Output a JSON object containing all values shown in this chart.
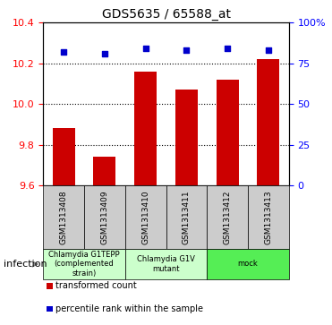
{
  "title": "GDS5635 / 65588_at",
  "samples": [
    "GSM1313408",
    "GSM1313409",
    "GSM1313410",
    "GSM1313411",
    "GSM1313412",
    "GSM1313413"
  ],
  "bar_values": [
    9.88,
    9.74,
    10.16,
    10.07,
    10.12,
    10.22
  ],
  "percentile_values": [
    82,
    81,
    84,
    83,
    84,
    83
  ],
  "ylim_left": [
    9.6,
    10.4
  ],
  "ylim_right": [
    0,
    100
  ],
  "yticks_left": [
    9.6,
    9.8,
    10.0,
    10.2,
    10.4
  ],
  "yticks_right": [
    0,
    25,
    50,
    75,
    100
  ],
  "ytick_labels_right": [
    "0",
    "25",
    "50",
    "75",
    "100%"
  ],
  "bar_color": "#cc0000",
  "dot_color": "#0000cc",
  "group_configs": [
    {
      "indices": [
        0,
        1
      ],
      "label": "Chlamydia G1TEPP\n(complemented\nstrain)",
      "color": "#ccffcc"
    },
    {
      "indices": [
        2,
        3
      ],
      "label": "Chlamydia G1V\nmutant",
      "color": "#ccffcc"
    },
    {
      "indices": [
        4,
        5
      ],
      "label": "mock",
      "color": "#55ee55"
    }
  ],
  "factor_label": "infection",
  "legend_bar_label": "transformed count",
  "legend_dot_label": "percentile rank within the sample",
  "sample_box_color": "#cccccc",
  "grid_linestyle": "dotted",
  "background_color": "#ffffff"
}
